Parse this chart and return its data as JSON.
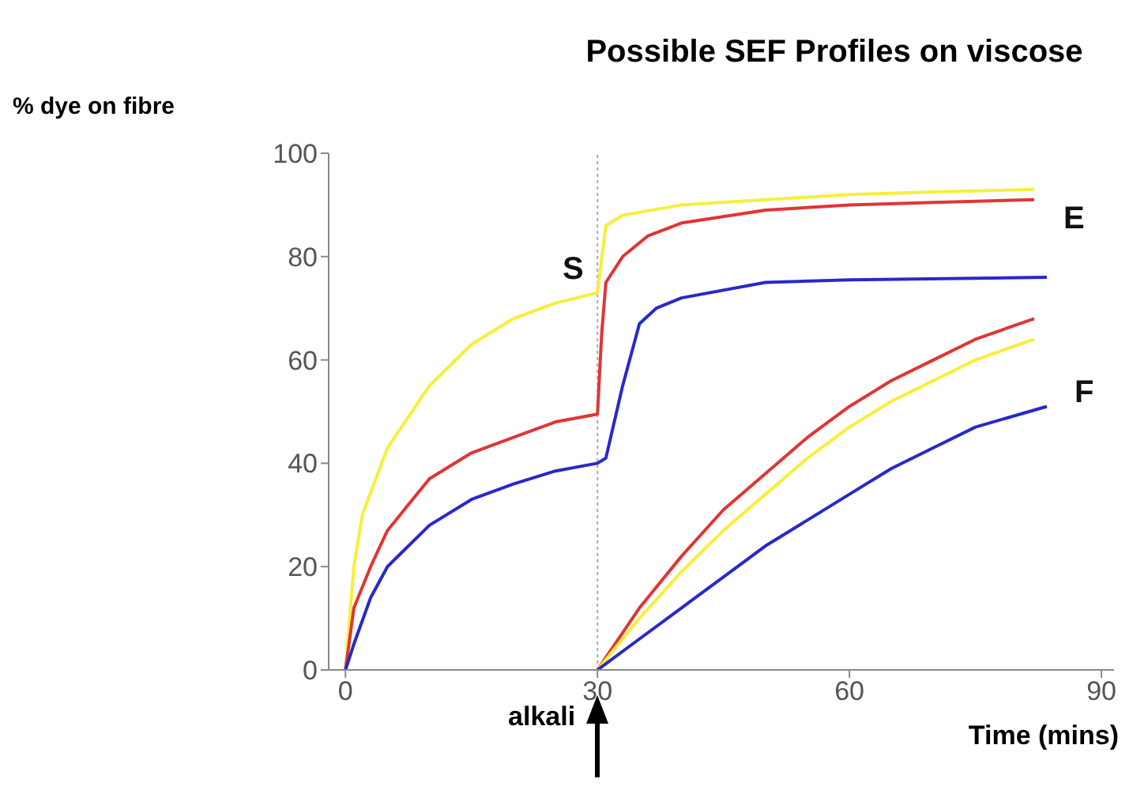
{
  "chart_data": {
    "type": "line",
    "title": "Possible SEF Profiles on viscose",
    "xlabel": "Time (mins)",
    "ylabel": "% dye on fibre",
    "xlim": [
      -2,
      91.5
    ],
    "ylim": [
      0,
      100
    ],
    "xticks": [
      0,
      30,
      60,
      90
    ],
    "yticks": [
      0,
      20,
      40,
      60,
      80,
      100
    ],
    "grid": false,
    "marker": "none",
    "line_style": "solid",
    "ref_lines": [
      {
        "axis": "x",
        "value": 30,
        "label": "alkali",
        "line_style": "dotted",
        "color": "#aaaaaa"
      }
    ],
    "annotations": [
      "S",
      "E",
      "F"
    ],
    "series": [
      {
        "color": "#f5f03a",
        "x": [
          0,
          1,
          2,
          5,
          10,
          15,
          20,
          25,
          30,
          31,
          33,
          40,
          50,
          60,
          70,
          82
        ],
        "values": [
          0,
          20,
          30,
          43,
          55,
          63,
          68,
          71,
          73,
          86,
          88,
          90,
          91,
          92,
          92.5,
          93
        ]
      },
      {
        "color": "#e03535",
        "x": [
          0,
          1,
          3,
          5,
          10,
          15,
          20,
          25,
          30,
          30.5,
          31,
          33,
          36,
          40,
          50,
          60,
          70,
          82
        ],
        "values": [
          0,
          12,
          20,
          27,
          37,
          42,
          45,
          48,
          49.5,
          65,
          75,
          80,
          84,
          86.5,
          89,
          90,
          90.5,
          91
        ]
      },
      {
        "color": "#2828cc",
        "x": [
          0,
          1,
          3,
          5,
          10,
          15,
          20,
          25,
          30,
          31,
          33,
          35,
          37,
          40,
          50,
          60,
          83.5
        ],
        "values": [
          0,
          5,
          14,
          20,
          28,
          33,
          36,
          38.5,
          40,
          41,
          55,
          67,
          70,
          72,
          75,
          75.5,
          76
        ]
      },
      {
        "color": "#e03535",
        "x": [
          30,
          35,
          40,
          45,
          50,
          55,
          60,
          65,
          70,
          75,
          82
        ],
        "values": [
          0,
          12,
          22,
          31,
          38,
          45,
          51,
          56,
          60,
          64,
          68
        ]
      },
      {
        "color": "#f5f03a",
        "x": [
          30,
          35,
          40,
          45,
          50,
          55,
          60,
          65,
          70,
          75,
          82
        ],
        "values": [
          0,
          10,
          19,
          27,
          34,
          41,
          47,
          52,
          56,
          60,
          64
        ]
      },
      {
        "color": "#2828cc",
        "x": [
          30,
          35,
          40,
          45,
          50,
          55,
          60,
          65,
          70,
          75,
          83.5
        ],
        "values": [
          0,
          6,
          12,
          18,
          24,
          29,
          34,
          39,
          43,
          47,
          51
        ]
      }
    ]
  }
}
